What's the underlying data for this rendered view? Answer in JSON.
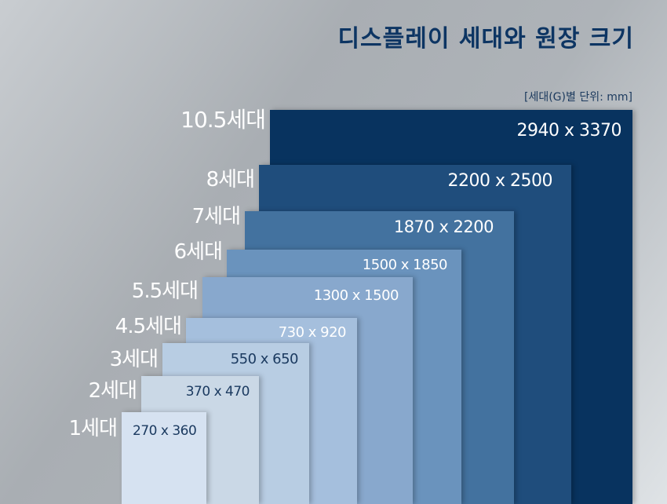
{
  "title": "디스플레이 세대와 원장 크기",
  "unit_note": "[세대(G)별 단위: mm]",
  "chart_data": {
    "type": "nested-rectangles",
    "title": "디스플레이 세대와 원장 크기",
    "unit": "mm",
    "generations": [
      {
        "label": "10.5세대",
        "size": "2940 x 3370",
        "width": 2940,
        "height": 3370,
        "color": "#08335f",
        "text_color": "#ffffff"
      },
      {
        "label": "8세대",
        "size": "2200 x 2500",
        "width": 2200,
        "height": 2500,
        "color": "#1f4d7c",
        "text_color": "#ffffff"
      },
      {
        "label": "7세대",
        "size": "1870 x 2200",
        "width": 1870,
        "height": 2200,
        "color": "#43729f",
        "text_color": "#ffffff"
      },
      {
        "label": "6세대",
        "size": "1500 x 1850",
        "width": 1500,
        "height": 1850,
        "color": "#6a93bd",
        "text_color": "#ffffff"
      },
      {
        "label": "5.5세대",
        "size": "1300 x 1500",
        "width": 1300,
        "height": 1500,
        "color": "#88a8cd",
        "text_color": "#ffffff"
      },
      {
        "label": "4.5세대",
        "size": "730 x 920",
        "width": 730,
        "height": 920,
        "color": "#a5bfdd",
        "text_color": "#ffffff"
      },
      {
        "label": "3세대",
        "size": "550 x 650",
        "width": 550,
        "height": 650,
        "color": "#b8cde3",
        "text_color": "#1b3a60"
      },
      {
        "label": "2세대",
        "size": "370 x 470",
        "width": 370,
        "height": 470,
        "color": "#cad8e6",
        "text_color": "#1b3a60"
      },
      {
        "label": "1세대",
        "size": "270 x 360",
        "width": 270,
        "height": 360,
        "color": "#d6e2f1",
        "text_color": "#1b3a60"
      }
    ]
  }
}
